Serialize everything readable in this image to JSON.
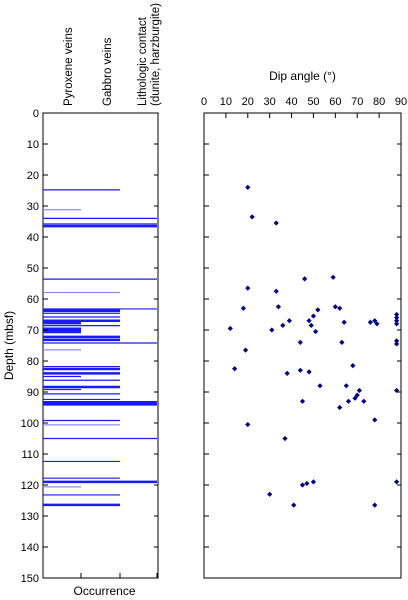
{
  "chart_data": [
    {
      "type": "occurrence-log",
      "ylabel": "Depth (mbsf)",
      "xlabel": "Occurrence",
      "ylim": [
        0,
        150
      ],
      "yticks": [
        0,
        10,
        20,
        30,
        40,
        50,
        60,
        70,
        80,
        90,
        100,
        110,
        120,
        130,
        140,
        150
      ],
      "tracks": [
        {
          "name": "Pyroxene veins"
        },
        {
          "name": "Gabbro veins"
        },
        {
          "name": "Lithologic contact\n(dunite, harzburgite)"
        }
      ],
      "occurrences": [
        {
          "depth": 24.8,
          "track": 2,
          "color": "#1a1aff",
          "weight": 1
        },
        {
          "depth": 31.2,
          "track": 1,
          "color": "#8c8cff",
          "weight": 1
        },
        {
          "depth": 34.0,
          "track": 3,
          "color": "#1a1aff",
          "weight": 1
        },
        {
          "depth": 35.8,
          "track": 3,
          "color": "#1a1aff",
          "weight": 1
        },
        {
          "depth": 36.5,
          "track": 3,
          "color": "#1a1aff",
          "weight": 2
        },
        {
          "depth": 53.6,
          "track": 3,
          "color": "#1a1aff",
          "weight": 1
        },
        {
          "depth": 57.9,
          "track": 2,
          "color": "#8c8cff",
          "weight": 1
        },
        {
          "depth": 63.2,
          "track": 3,
          "color": "#1a1aff",
          "weight": 1
        },
        {
          "depth": 63.8,
          "track": 2,
          "color": "#1a1aff",
          "weight": 2
        },
        {
          "depth": 64.6,
          "track": 2,
          "color": "#1a1aff",
          "weight": 1
        },
        {
          "depth": 65.8,
          "track": 2,
          "color": "#1a1aff",
          "weight": 1
        },
        {
          "depth": 67.0,
          "track": 2,
          "color": "#1a1aff",
          "weight": 2
        },
        {
          "depth": 67.8,
          "track": 1,
          "color": "#1a1aff",
          "weight": 2
        },
        {
          "depth": 68.6,
          "track": 2,
          "color": "#1a1aff",
          "weight": 1
        },
        {
          "depth": 69.6,
          "track": 1,
          "color": "#1a1aff",
          "weight": 2
        },
        {
          "depth": 70.4,
          "track": 1,
          "color": "#1a1aff",
          "weight": 3
        },
        {
          "depth": 72.2,
          "track": 2,
          "color": "#1a1aff",
          "weight": 2
        },
        {
          "depth": 73.2,
          "track": 2,
          "color": "#1a1aff",
          "weight": 2
        },
        {
          "depth": 74.2,
          "track": 3,
          "color": "#1a1aff",
          "weight": 1
        },
        {
          "depth": 76.4,
          "track": 1,
          "color": "#8c8cff",
          "weight": 1
        },
        {
          "depth": 81.8,
          "track": 2,
          "color": "#1a1aff",
          "weight": 1
        },
        {
          "depth": 82.6,
          "track": 2,
          "color": "#1a1aff",
          "weight": 2
        },
        {
          "depth": 84.0,
          "track": 2,
          "color": "#1a1aff",
          "weight": 2
        },
        {
          "depth": 85.0,
          "track": 1,
          "color": "#1a1aff",
          "weight": 1
        },
        {
          "depth": 86.2,
          "track": 2,
          "color": "#1a1aff",
          "weight": 1
        },
        {
          "depth": 88.4,
          "track": 2,
          "color": "#1a1aff",
          "weight": 2
        },
        {
          "depth": 89.2,
          "track": 1,
          "color": "#1a1aff",
          "weight": 1
        },
        {
          "depth": 90.6,
          "track": 2,
          "color": "#1a1aff",
          "weight": 1
        },
        {
          "depth": 92.4,
          "track": 2,
          "color": "#1a1aff",
          "weight": 1
        },
        {
          "depth": 93.3,
          "track": 3,
          "color": "#1a1aff",
          "weight": 2
        },
        {
          "depth": 94.0,
          "track": 3,
          "color": "#1a1aff",
          "weight": 2
        },
        {
          "depth": 99.2,
          "track": 2,
          "color": "#1a1aff",
          "weight": 1
        },
        {
          "depth": 100.6,
          "track": 2,
          "color": "#8c8cff",
          "weight": 1
        },
        {
          "depth": 105.0,
          "track": 3,
          "color": "#1a1aff",
          "weight": 1
        },
        {
          "depth": 112.4,
          "track": 2,
          "color": "#1a1aff",
          "weight": 1
        },
        {
          "depth": 117.8,
          "track": 2,
          "color": "#1a1aff",
          "weight": 1
        },
        {
          "depth": 119.0,
          "track": 3,
          "color": "#1a1aff",
          "weight": 2
        },
        {
          "depth": 120.6,
          "track": 1,
          "color": "#8c8cff",
          "weight": 1
        },
        {
          "depth": 123.2,
          "track": 2,
          "color": "#1a1aff",
          "weight": 1
        },
        {
          "depth": 126.4,
          "track": 2,
          "color": "#1a1aff",
          "weight": 2
        }
      ]
    },
    {
      "type": "scatter",
      "xlabel": "Dip angle (°)",
      "ylabel": "",
      "xlim": [
        0,
        90
      ],
      "ylim": [
        0,
        150
      ],
      "xticks": [
        0,
        10,
        20,
        30,
        40,
        50,
        60,
        70,
        80,
        90
      ],
      "marker_color": "#000080",
      "points": [
        [
          20,
          24
        ],
        [
          22,
          33.5
        ],
        [
          33,
          35.5
        ],
        [
          46,
          53.5
        ],
        [
          59,
          53
        ],
        [
          20,
          56.5
        ],
        [
          33,
          57.5
        ],
        [
          18,
          63
        ],
        [
          34,
          62.5
        ],
        [
          52,
          63.5
        ],
        [
          60,
          62.5
        ],
        [
          62,
          63
        ],
        [
          50,
          65.5
        ],
        [
          39,
          67
        ],
        [
          48,
          67
        ],
        [
          64,
          67.5
        ],
        [
          76,
          67.5
        ],
        [
          78,
          67
        ],
        [
          79,
          68
        ],
        [
          36,
          68.5
        ],
        [
          49,
          68.5
        ],
        [
          12,
          69.5
        ],
        [
          31,
          70
        ],
        [
          51,
          70.5
        ],
        [
          88,
          65
        ],
        [
          88,
          66
        ],
        [
          88,
          67
        ],
        [
          88,
          68
        ],
        [
          44,
          74
        ],
        [
          63,
          74
        ],
        [
          88,
          73.5
        ],
        [
          88,
          74.5
        ],
        [
          19,
          76.5
        ],
        [
          14,
          82.5
        ],
        [
          68,
          81.5
        ],
        [
          44,
          83
        ],
        [
          48,
          83.5
        ],
        [
          38,
          84
        ],
        [
          53,
          88
        ],
        [
          65,
          88
        ],
        [
          88,
          89.5
        ],
        [
          71,
          89.5
        ],
        [
          70,
          91
        ],
        [
          69,
          92
        ],
        [
          66,
          93
        ],
        [
          73,
          93
        ],
        [
          45,
          93
        ],
        [
          62,
          95
        ],
        [
          78,
          99
        ],
        [
          20,
          100.5
        ],
        [
          37,
          105
        ],
        [
          47,
          119.5
        ],
        [
          50,
          119
        ],
        [
          45,
          120
        ],
        [
          88,
          119
        ],
        [
          30,
          123
        ],
        [
          41,
          126.5
        ],
        [
          78,
          126.5
        ]
      ]
    }
  ]
}
